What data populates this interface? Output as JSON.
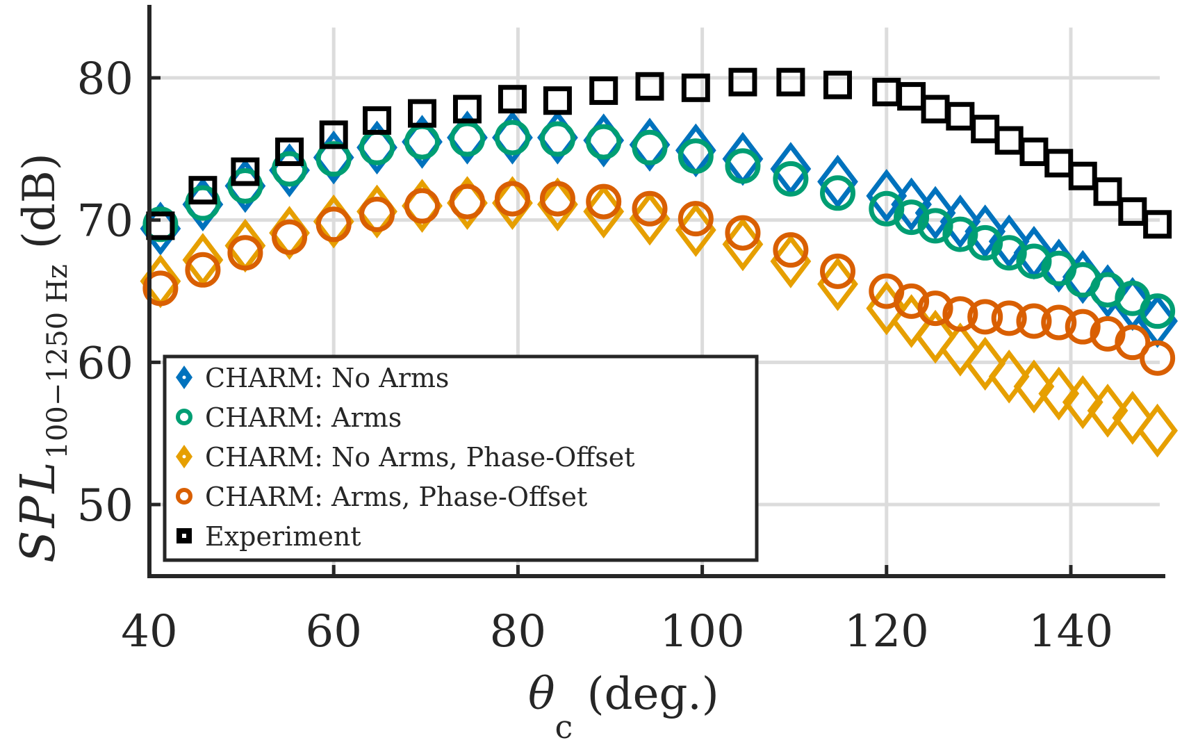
{
  "chart_data": {
    "type": "scatter",
    "title": "",
    "xlabel": {
      "symbol": "θ",
      "subscript": "c",
      "unit": " (deg.)"
    },
    "ylabel": {
      "symbol": "SPL",
      "subscript": "100−1250 Hz",
      "unit": "(dB)"
    },
    "xlim": [
      40,
      150
    ],
    "ylim": [
      45,
      85
    ],
    "xticks": [
      40,
      60,
      80,
      100,
      120,
      140
    ],
    "yticks": [
      50,
      60,
      70,
      80
    ],
    "xtick_labels": [
      "40",
      "60",
      "80",
      "100",
      "120",
      "140"
    ],
    "ytick_labels": [
      "50",
      "60",
      "70",
      "80"
    ],
    "grid": true,
    "legend_position": "bottom-left",
    "x": [
      41.2,
      45.8,
      50.4,
      55.2,
      60.0,
      64.7,
      69.6,
      74.5,
      79.4,
      84.3,
      89.3,
      94.3,
      99.3,
      104.4,
      109.6,
      114.7,
      120.0,
      122.7,
      125.3,
      128.0,
      130.7,
      133.3,
      136.0,
      138.7,
      141.3,
      144.0,
      146.7,
      149.4
    ],
    "series": [
      {
        "name": "CHARM: No Arms",
        "marker": "diamond",
        "color": "#0072BD",
        "values": [
          69.4,
          71.1,
          72.4,
          73.5,
          74.4,
          75.1,
          75.5,
          75.8,
          75.8,
          75.8,
          75.6,
          75.3,
          74.9,
          74.3,
          73.6,
          72.7,
          71.7,
          71.1,
          70.5,
          69.9,
          69.2,
          68.5,
          67.7,
          66.8,
          66.0,
          65.0,
          64.1,
          62.9
        ]
      },
      {
        "name": "CHARM: Arms",
        "marker": "circle",
        "color": "#009E73",
        "values": [
          69.7,
          71.2,
          72.4,
          73.6,
          74.3,
          75.1,
          75.5,
          75.7,
          75.8,
          75.7,
          75.5,
          75.1,
          74.5,
          73.8,
          72.9,
          71.9,
          70.8,
          70.2,
          69.6,
          69.0,
          68.4,
          67.7,
          67.1,
          66.6,
          65.8,
          65.1,
          64.5,
          63.6
        ]
      },
      {
        "name": "CHARM: No Arms, Phase-Offset",
        "marker": "diamond",
        "color": "#E69F00",
        "values": [
          65.7,
          67.2,
          68.2,
          69.1,
          69.9,
          70.6,
          71.0,
          71.2,
          71.2,
          71.1,
          70.6,
          70.1,
          69.3,
          68.3,
          67.1,
          65.5,
          63.8,
          62.9,
          61.8,
          60.9,
          59.9,
          59.0,
          58.3,
          57.8,
          57.2,
          56.6,
          56.1,
          55.2
        ]
      },
      {
        "name": "CHARM: Arms, Phase-Offset",
        "marker": "circle",
        "color": "#D95F02",
        "values": [
          65.2,
          66.5,
          67.7,
          68.8,
          69.7,
          70.4,
          71.0,
          71.3,
          71.5,
          71.5,
          71.3,
          70.8,
          70.1,
          69.1,
          67.9,
          66.4,
          65.0,
          64.3,
          63.8,
          63.4,
          63.2,
          63.1,
          62.9,
          62.8,
          62.5,
          62.0,
          61.4,
          60.3
        ]
      },
      {
        "name": "Experiment",
        "marker": "square",
        "color": "#000000",
        "values": [
          69.6,
          72.1,
          73.4,
          74.8,
          76.0,
          77.0,
          77.5,
          77.8,
          78.5,
          78.4,
          79.1,
          79.4,
          79.3,
          79.7,
          79.7,
          79.5,
          79.0,
          78.7,
          77.8,
          77.3,
          76.4,
          75.6,
          74.8,
          74.0,
          73.1,
          72.0,
          70.6,
          69.7
        ]
      }
    ]
  }
}
